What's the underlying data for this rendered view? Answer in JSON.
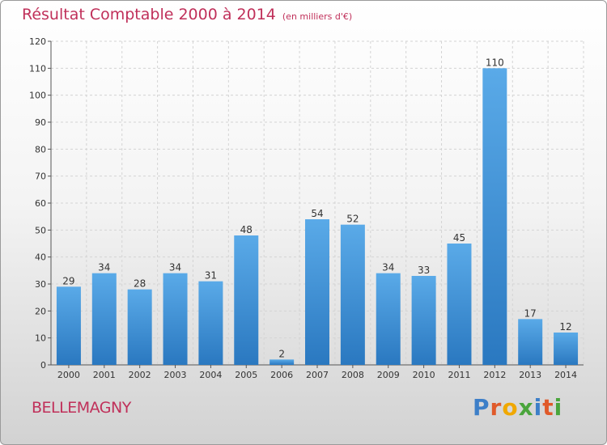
{
  "header": {
    "title": "Résultat Comptable 2000 à 2014",
    "subtitle": "(en milliers d'€)"
  },
  "footer": {
    "commune": "BELLEMAGNY",
    "logo_letters": [
      "P",
      "r",
      "o",
      "x",
      "i",
      "t",
      "i"
    ],
    "logo_colors": [
      "#3d7fc8",
      "#e05a2a",
      "#f0a800",
      "#4aa53c",
      "#3d7fc8",
      "#e05a2a",
      "#4aa53c"
    ]
  },
  "chart_data": {
    "type": "bar",
    "title": "Résultat Comptable 2000 à 2014",
    "subtitle": "(en milliers d'€)",
    "categories": [
      "2000",
      "2001",
      "2002",
      "2003",
      "2004",
      "2005",
      "2006",
      "2007",
      "2008",
      "2009",
      "2010",
      "2011",
      "2012",
      "2013",
      "2014"
    ],
    "values": [
      29,
      34,
      28,
      34,
      31,
      48,
      2,
      54,
      52,
      34,
      33,
      45,
      110,
      17,
      12
    ],
    "ylim": [
      0,
      120
    ],
    "yticks": [
      0,
      10,
      20,
      30,
      40,
      50,
      60,
      70,
      80,
      90,
      100,
      110,
      120
    ],
    "grid": true,
    "bar_color_light": "#5aaae8",
    "bar_color_dark": "#2a78c0"
  }
}
